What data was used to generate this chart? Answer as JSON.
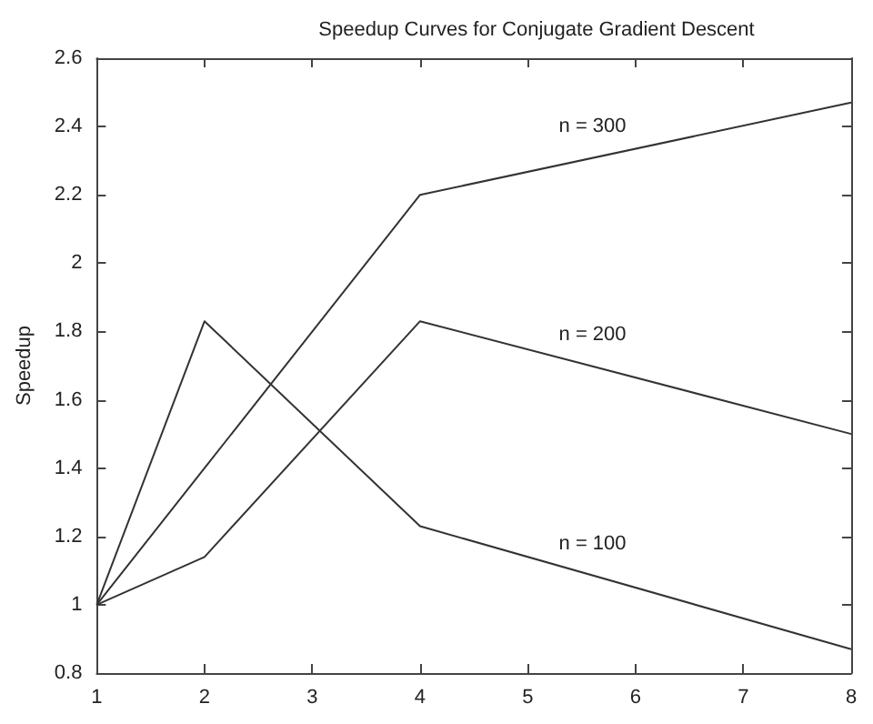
{
  "chart_data": {
    "type": "line",
    "title": "Speedup Curves for Conjugate Gradient Descent",
    "ylabel": "Speedup",
    "x": [
      1,
      2,
      4,
      8
    ],
    "series": [
      {
        "name": "n = 100",
        "color": "#333333",
        "values": [
          1,
          1.83,
          1.23,
          0.87
        ]
      },
      {
        "name": "n = 200",
        "color": "#333333",
        "values": [
          1,
          1.14,
          1.83,
          1.5
        ]
      },
      {
        "name": "n = 300",
        "color": "#333333",
        "values": [
          1,
          1.4,
          2.2,
          2.47
        ]
      }
    ],
    "xlim": [
      1,
      8
    ],
    "xticks": [
      1,
      2,
      3,
      4,
      5,
      6,
      7,
      8
    ],
    "ylim": [
      0.8,
      2.6
    ],
    "yticks": [
      0.8,
      1,
      1.2,
      1.4,
      1.6,
      1.8,
      2,
      2.2,
      2.4,
      2.6
    ],
    "grid": false,
    "marker": "none",
    "line_style": "solid"
  }
}
